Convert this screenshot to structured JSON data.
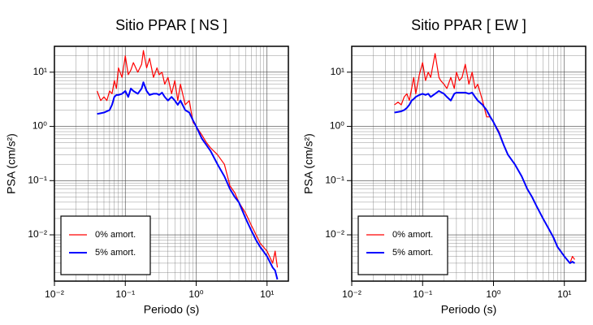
{
  "chart_data": [
    {
      "type": "line",
      "title": "Sitio PPAR [ NS ]",
      "xlabel": "Periodo (s)",
      "ylabel": "PSA (cm/s²)",
      "log_x": true,
      "log_y": true,
      "grid": true,
      "legend": "lower left",
      "xlim": [
        0.01,
        20
      ],
      "ylim": [
        0.0014,
        30
      ],
      "xticks": [
        {
          "value": 0.01,
          "label": "10⁻²"
        },
        {
          "value": 0.1,
          "label": "10⁻¹"
        },
        {
          "value": 1,
          "label": "10⁰"
        },
        {
          "value": 10,
          "label": "10¹"
        }
      ],
      "yticks": [
        {
          "value": 0.01,
          "label": "10⁻²"
        },
        {
          "value": 0.1,
          "label": "10⁻¹"
        },
        {
          "value": 1,
          "label": "10⁰"
        },
        {
          "value": 10,
          "label": "10¹"
        }
      ],
      "xminor": [
        0.02,
        0.03,
        0.04,
        0.05,
        0.06,
        0.07,
        0.08,
        0.09,
        0.2,
        0.3,
        0.4,
        0.5,
        0.6,
        0.7,
        0.8,
        0.9,
        2,
        3,
        4,
        5,
        6,
        7,
        8,
        9
      ],
      "yminor": [
        0.002,
        0.003,
        0.004,
        0.005,
        0.006,
        0.007,
        0.008,
        0.009,
        0.02,
        0.03,
        0.04,
        0.05,
        0.06,
        0.07,
        0.08,
        0.09,
        0.2,
        0.3,
        0.4,
        0.5,
        0.6,
        0.7,
        0.8,
        0.9,
        2,
        3,
        4,
        5,
        6,
        7,
        8,
        9,
        20
      ],
      "x": [
        0.04,
        0.045,
        0.05,
        0.055,
        0.06,
        0.065,
        0.07,
        0.075,
        0.08,
        0.09,
        0.1,
        0.11,
        0.12,
        0.13,
        0.15,
        0.17,
        0.18,
        0.2,
        0.22,
        0.25,
        0.28,
        0.3,
        0.33,
        0.36,
        0.4,
        0.45,
        0.5,
        0.55,
        0.6,
        0.7,
        0.8,
        0.9,
        1.0,
        1.2,
        1.4,
        1.6,
        2,
        2.5,
        3,
        3.5,
        4,
        5,
        6,
        7,
        8,
        10,
        12,
        13,
        14
      ],
      "series": [
        {
          "name": "0% amort.",
          "color": "#ff0000",
          "width": 1.2,
          "values": [
            4.5,
            3.0,
            3.5,
            3.0,
            4.5,
            4.0,
            7,
            5,
            12,
            8,
            20,
            9,
            11,
            15,
            10,
            14,
            25,
            12,
            18,
            8,
            12,
            9,
            10,
            6,
            8,
            4,
            7,
            3,
            6,
            2.5,
            3,
            1.2,
            1.0,
            0.7,
            0.5,
            0.4,
            0.3,
            0.2,
            0.08,
            0.06,
            0.04,
            0.025,
            0.015,
            0.01,
            0.007,
            0.005,
            0.003,
            0.005,
            0.0025
          ]
        },
        {
          "name": "5% amort.",
          "color": "#0000ff",
          "width": 2,
          "values": [
            1.7,
            1.75,
            1.8,
            1.9,
            2.0,
            2.5,
            3.5,
            3.8,
            3.8,
            4.0,
            4.5,
            3.5,
            5,
            4.5,
            4.0,
            5.0,
            6.5,
            4.5,
            3.8,
            4.0,
            4.0,
            3.8,
            4.2,
            3.5,
            3.0,
            3.5,
            3.0,
            2.5,
            3.0,
            2.0,
            1.8,
            1.3,
            1.0,
            0.6,
            0.45,
            0.35,
            0.2,
            0.12,
            0.07,
            0.05,
            0.04,
            0.02,
            0.012,
            0.008,
            0.006,
            0.004,
            0.0025,
            0.0022,
            0.0015
          ]
        }
      ]
    },
    {
      "type": "line",
      "title": "Sitio PPAR [ EW ]",
      "xlabel": "Periodo (s)",
      "ylabel": "PSA (cm/s²)",
      "log_x": true,
      "log_y": true,
      "grid": true,
      "legend": "lower left",
      "xlim": [
        0.01,
        20
      ],
      "ylim": [
        0.0014,
        30
      ],
      "xticks": [
        {
          "value": 0.01,
          "label": "10⁻²"
        },
        {
          "value": 0.1,
          "label": "10⁻¹"
        },
        {
          "value": 1,
          "label": "10⁰"
        },
        {
          "value": 10,
          "label": "10¹"
        }
      ],
      "yticks": [
        {
          "value": 0.01,
          "label": "10⁻²"
        },
        {
          "value": 0.1,
          "label": "10⁻¹"
        },
        {
          "value": 1,
          "label": "10⁰"
        },
        {
          "value": 10,
          "label": "10¹"
        }
      ],
      "xminor": [
        0.02,
        0.03,
        0.04,
        0.05,
        0.06,
        0.07,
        0.08,
        0.09,
        0.2,
        0.3,
        0.4,
        0.5,
        0.6,
        0.7,
        0.8,
        0.9,
        2,
        3,
        4,
        5,
        6,
        7,
        8,
        9
      ],
      "yminor": [
        0.002,
        0.003,
        0.004,
        0.005,
        0.006,
        0.007,
        0.008,
        0.009,
        0.02,
        0.03,
        0.04,
        0.05,
        0.06,
        0.07,
        0.08,
        0.09,
        0.2,
        0.3,
        0.4,
        0.5,
        0.6,
        0.7,
        0.8,
        0.9,
        2,
        3,
        4,
        5,
        6,
        7,
        8,
        9,
        20
      ],
      "x": [
        0.04,
        0.045,
        0.05,
        0.055,
        0.06,
        0.065,
        0.07,
        0.075,
        0.08,
        0.09,
        0.1,
        0.11,
        0.12,
        0.13,
        0.15,
        0.17,
        0.18,
        0.2,
        0.22,
        0.25,
        0.28,
        0.3,
        0.33,
        0.36,
        0.4,
        0.45,
        0.5,
        0.55,
        0.6,
        0.7,
        0.8,
        0.9,
        1.0,
        1.2,
        1.4,
        1.6,
        2,
        2.5,
        3,
        3.5,
        4,
        5,
        6,
        7,
        8,
        10,
        12,
        13,
        14
      ],
      "series": [
        {
          "name": "0% amort.",
          "color": "#ff0000",
          "width": 1.2,
          "values": [
            2.5,
            2.8,
            2.5,
            3.5,
            4,
            3,
            5,
            8,
            4,
            9,
            15,
            7,
            10,
            8,
            22,
            8,
            7,
            6,
            5,
            8,
            5,
            10,
            7,
            8,
            14,
            6,
            10,
            5,
            6,
            3,
            1.5,
            1.5,
            1.2,
            0.8,
            0.45,
            0.3,
            0.2,
            0.12,
            0.07,
            0.05,
            0.035,
            0.02,
            0.013,
            0.009,
            0.006,
            0.004,
            0.003,
            0.004,
            0.0035
          ]
        },
        {
          "name": "5% amort.",
          "color": "#0000ff",
          "width": 2,
          "values": [
            1.8,
            1.85,
            1.9,
            2.0,
            2.2,
            2.5,
            3,
            3.2,
            3.5,
            3.8,
            4.0,
            3.8,
            4.0,
            3.5,
            4.0,
            4.5,
            4.3,
            4.0,
            3.5,
            3.0,
            4.0,
            4.2,
            4.2,
            4.2,
            4.2,
            4.0,
            4.2,
            3.5,
            3.0,
            2.5,
            2.0,
            1.5,
            1.2,
            0.75,
            0.45,
            0.3,
            0.2,
            0.12,
            0.07,
            0.05,
            0.035,
            0.02,
            0.013,
            0.009,
            0.006,
            0.004,
            0.003,
            0.0032,
            0.003
          ]
        }
      ]
    }
  ]
}
